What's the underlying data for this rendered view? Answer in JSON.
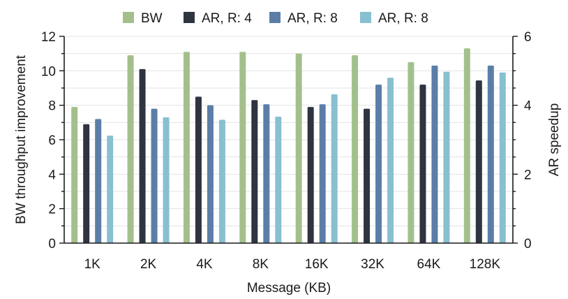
{
  "chart_data": {
    "type": "bar",
    "categories": [
      "1K",
      "2K",
      "4K",
      "8K",
      "16K",
      "32K",
      "64K",
      "128K"
    ],
    "xlabel": "Message (KB)",
    "ylabel": "BW throughput improvement",
    "y2label": "AR speedup",
    "ylim": [
      0,
      12
    ],
    "y2lim": [
      0,
      6
    ],
    "yticks": [
      0,
      2,
      4,
      6,
      8,
      10,
      12
    ],
    "y2ticks": [
      0,
      2,
      4,
      6
    ],
    "grid": "horizontal",
    "legend_position": "top",
    "series": [
      {
        "name": "BW",
        "axis": "left",
        "color": "#a3c08c",
        "values": [
          7.9,
          10.9,
          11.1,
          11.1,
          11.0,
          10.9,
          10.5,
          11.3
        ]
      },
      {
        "name": "AR, R: 4",
        "axis": "right",
        "color": "#2e3440",
        "values": [
          3.45,
          5.05,
          4.25,
          4.15,
          3.95,
          3.9,
          4.6,
          4.72
        ]
      },
      {
        "name": "AR, R: 8",
        "axis": "right",
        "color": "#5b7ea8",
        "values": [
          3.6,
          3.9,
          4.0,
          4.03,
          4.03,
          4.6,
          5.15,
          5.15
        ]
      },
      {
        "name": "AR, R: 8",
        "axis": "right",
        "color": "#87c0d0",
        "values": [
          3.12,
          3.65,
          3.58,
          3.67,
          4.32,
          4.8,
          4.97,
          4.95
        ]
      }
    ]
  }
}
